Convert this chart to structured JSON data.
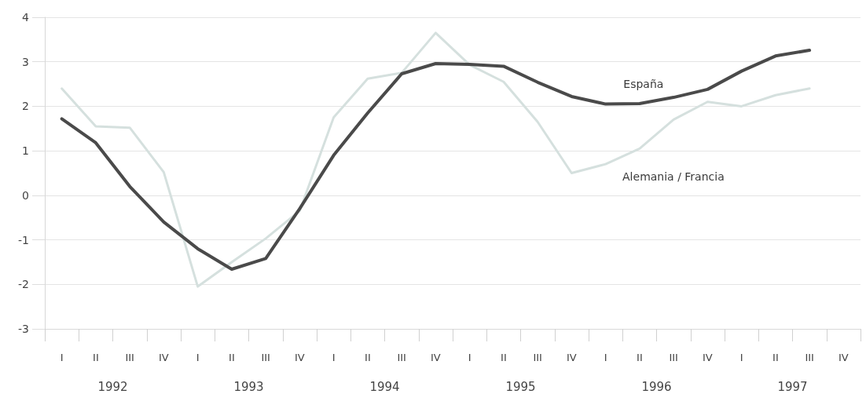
{
  "chart_data": {
    "type": "line",
    "categories": [
      "I",
      "II",
      "III",
      "IV",
      "I",
      "II",
      "III",
      "IV",
      "I",
      "II",
      "III",
      "IV",
      "I",
      "II",
      "III",
      "IV",
      "I",
      "II",
      "III",
      "IV",
      "I",
      "II",
      "III",
      "IV"
    ],
    "annotations": [
      "1992",
      "1993",
      "1994",
      "1995",
      "1996",
      "1997"
    ],
    "series": [
      {
        "name": "España",
        "color": "#4a4a4a",
        "values": [
          1.72,
          1.18,
          0.2,
          -0.6,
          -1.2,
          -1.66,
          -1.42,
          -0.3,
          0.9,
          1.85,
          2.73,
          2.96,
          2.94,
          2.9,
          2.54,
          2.22,
          2.05,
          2.06,
          2.2,
          2.38,
          2.79,
          3.13,
          3.26,
          null
        ]
      },
      {
        "name": "Alemania / Francia",
        "color": "#d5e0de",
        "values": [
          2.4,
          1.55,
          1.52,
          0.52,
          -2.05,
          -1.5,
          -0.97,
          -0.35,
          1.75,
          2.62,
          2.75,
          3.65,
          2.93,
          2.55,
          1.65,
          0.5,
          0.7,
          1.05,
          1.7,
          2.1,
          2.0,
          2.25,
          2.4,
          null
        ]
      }
    ],
    "ylim": [
      -3,
      4
    ],
    "yticks": [
      -3,
      -2,
      -1,
      0,
      1,
      2,
      3,
      4
    ],
    "grid": "y",
    "line_style": "solid"
  }
}
